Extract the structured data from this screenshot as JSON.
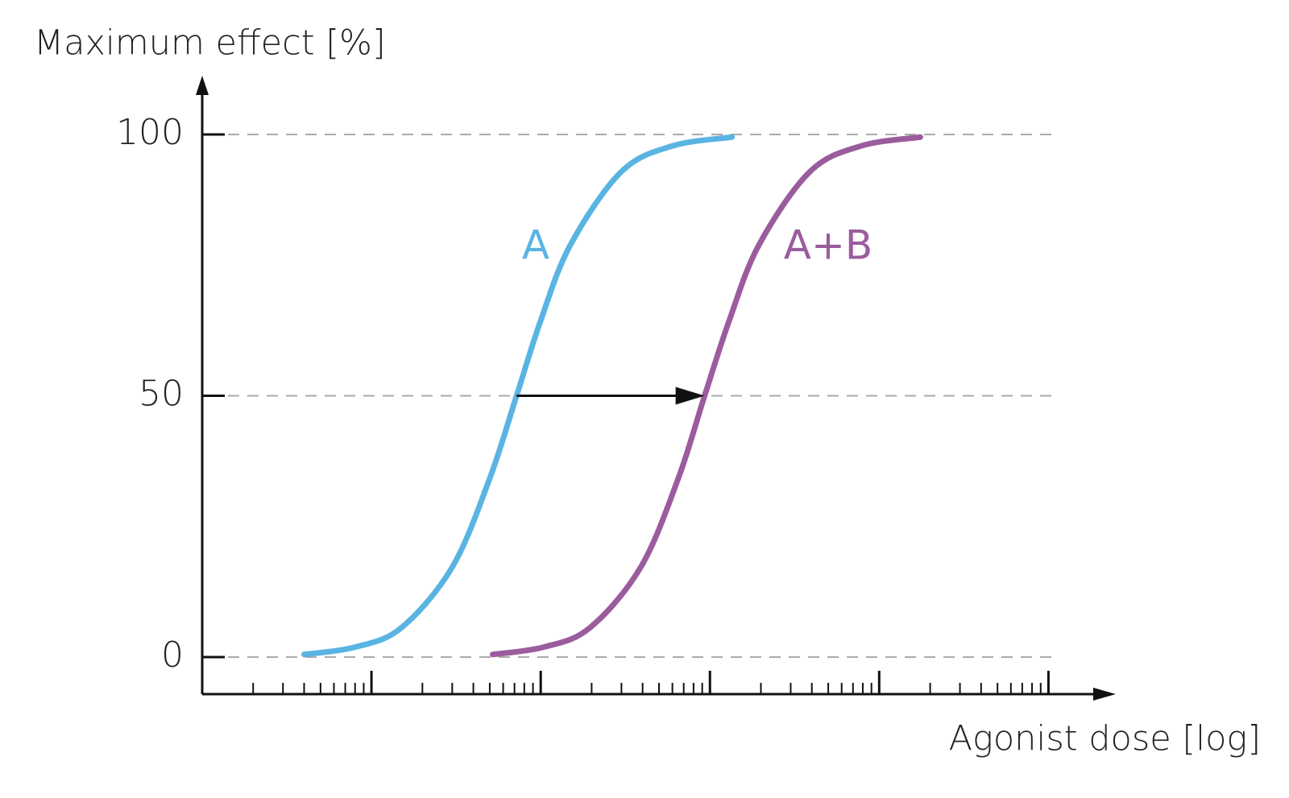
{
  "chart_data": {
    "type": "line",
    "y_axis_label": "Maximum effect [%]",
    "x_axis_label": "Agonist dose [log]",
    "xscale": "log",
    "xlim": [
      1,
      250000
    ],
    "ylim": [
      0,
      100
    ],
    "yticks": [
      0,
      50,
      100
    ],
    "xticks_major": [
      10,
      100,
      1000,
      10000,
      100000
    ],
    "xticks_minor": [
      2,
      3,
      4,
      5,
      6,
      7,
      8,
      9,
      20,
      30,
      40,
      50,
      60,
      70,
      80,
      90,
      200,
      300,
      400,
      500,
      600,
      700,
      800,
      900,
      2000,
      3000,
      4000,
      5000,
      6000,
      7000,
      8000,
      9000,
      20000,
      30000,
      40000,
      50000,
      60000,
      70000,
      80000,
      90000
    ],
    "grid": true,
    "series": [
      {
        "name": "A",
        "color": "#5ab4e2",
        "x": [
          4,
          8,
          15,
          30,
          50,
          72,
          100,
          150,
          300,
          600,
          1350
        ],
        "values": [
          0.5,
          1.9,
          5.6,
          17.2,
          34.2,
          50,
          64.4,
          78.9,
          92.9,
          97.8,
          99.5
        ]
      },
      {
        "name": "A+B",
        "color": "#9b5c9e",
        "x": [
          52,
          104,
          195,
          390,
          650,
          930,
          1300,
          1950,
          3900,
          7800,
          17500
        ],
        "values": [
          0.5,
          1.9,
          5.6,
          17.2,
          34.2,
          50,
          64.4,
          78.9,
          92.9,
          97.8,
          99.5
        ]
      }
    ],
    "arrow": {
      "from": 72,
      "to": 930,
      "y": 50
    }
  }
}
